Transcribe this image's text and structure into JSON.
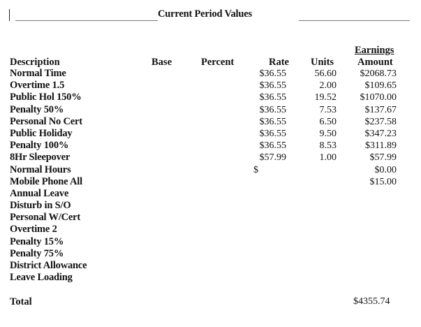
{
  "header": {
    "title": "Current Period Values"
  },
  "columns": {
    "description": "Description",
    "base": "Base",
    "percent": "Percent",
    "rate": "Rate",
    "units": "Units",
    "earnings": "Earnings",
    "amount": "Amount"
  },
  "descriptions": [
    "Normal Time",
    "Overtime 1.5",
    "Public Hol 150%",
    "Penalty 50%",
    "Personal No Cert",
    "Public Holiday",
    "Penalty 100%",
    "8Hr Sleepover",
    "Normal Hours",
    "Mobile Phone All",
    "Annual Leave",
    "Disturb in S/O",
    "Personal W/Cert",
    "Overtime 2",
    "Penalty 15%",
    "Penalty 75%",
    "District Allowance",
    "Leave Loading"
  ],
  "rates": [
    "$36.55",
    "$36.55",
    "$36.55",
    "$36.55",
    "$36.55",
    "$36.55",
    "$36.55",
    "$57.99",
    "$"
  ],
  "units": [
    "56.60",
    "2.00",
    "19.52",
    "7.53",
    "6.50",
    "9.50",
    "8.53",
    "1.00"
  ],
  "amounts": [
    "$2068.73",
    "$109.65",
    "$1070.00",
    "$137.67",
    "$237.58",
    "$347.23",
    "$311.89",
    "$57.99",
    "$0.00",
    "$15.00"
  ],
  "total": {
    "label": "Total",
    "value": "$4355.74"
  }
}
